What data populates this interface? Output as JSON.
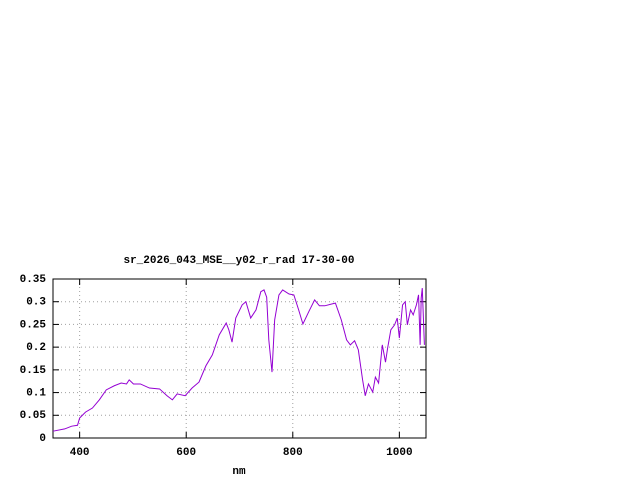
{
  "chart_data": {
    "type": "line",
    "title": "sr_2026_043_MSE__y02_r_rad 17-30-00",
    "xlabel": "nm",
    "xlim": [
      350,
      1050
    ],
    "ylim": [
      0,
      0.35
    ],
    "xticks": [
      400,
      600,
      800,
      1000
    ],
    "yticks": [
      0,
      0.05,
      0.1,
      0.15,
      0.2,
      0.25,
      0.3,
      0.35
    ],
    "grid": true,
    "x": [
      350,
      372,
      385,
      396,
      400,
      411,
      424,
      437,
      450,
      465,
      478,
      488,
      493,
      501,
      514,
      531,
      550,
      564,
      574,
      583,
      598,
      611,
      624,
      637,
      649,
      662,
      675,
      680,
      686,
      693,
      705,
      712,
      721,
      731,
      740,
      746,
      751,
      755,
      761,
      766,
      774,
      781,
      793,
      802,
      811,
      819,
      830,
      841,
      850,
      860,
      873,
      880,
      891,
      901,
      908,
      916,
      923,
      931,
      936,
      942,
      950,
      955,
      961,
      968,
      974,
      978,
      984,
      991,
      996,
      1000,
      1006,
      1011,
      1015,
      1021,
      1026,
      1032,
      1036,
      1039,
      1041,
      1043,
      1047
    ],
    "series": [
      {
        "color": "#9400d3",
        "values": [
          0.015,
          0.02,
          0.026,
          0.028,
          0.044,
          0.057,
          0.066,
          0.084,
          0.106,
          0.115,
          0.121,
          0.119,
          0.128,
          0.119,
          0.119,
          0.11,
          0.108,
          0.093,
          0.084,
          0.097,
          0.093,
          0.11,
          0.123,
          0.159,
          0.183,
          0.227,
          0.253,
          0.238,
          0.211,
          0.264,
          0.293,
          0.3,
          0.264,
          0.282,
          0.322,
          0.326,
          0.31,
          0.216,
          0.145,
          0.26,
          0.315,
          0.326,
          0.317,
          0.315,
          0.282,
          0.251,
          0.278,
          0.304,
          0.291,
          0.291,
          0.295,
          0.297,
          0.26,
          0.216,
          0.205,
          0.214,
          0.194,
          0.128,
          0.093,
          0.119,
          0.101,
          0.134,
          0.121,
          0.205,
          0.167,
          0.198,
          0.238,
          0.249,
          0.264,
          0.22,
          0.293,
          0.3,
          0.249,
          0.282,
          0.271,
          0.293,
          0.315,
          0.205,
          0.308,
          0.33,
          0.205
        ]
      }
    ]
  }
}
